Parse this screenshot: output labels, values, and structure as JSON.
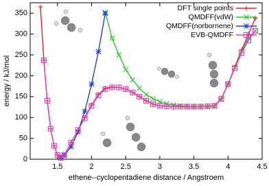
{
  "chart_data": {
    "type": "line",
    "x_label": "ethene--cyclopentadiene distance / Angstroem",
    "y_label": "energy / kJ/mol",
    "xlim": [
      1.1,
      4.5
    ],
    "xticks": [
      1.5,
      2,
      2.5,
      3,
      3.5,
      4,
      4.5
    ],
    "ylim": [
      0,
      375
    ],
    "yticks": [
      0,
      50,
      100,
      150,
      200,
      250,
      300,
      350
    ],
    "legend": "top-right",
    "series": [
      {
        "name": "DFT single points",
        "color": "#e3242b",
        "marker": "plus",
        "x": [
          1.25,
          1.3,
          1.35,
          1.4,
          1.45,
          1.5,
          1.55,
          1.6,
          1.7,
          1.8,
          1.9,
          2.0,
          2.1,
          2.2,
          2.3,
          2.4,
          2.5,
          2.6,
          2.7,
          2.8,
          2.9,
          3.0,
          3.1,
          3.2,
          3.3,
          3.4,
          3.5,
          3.6,
          3.7,
          3.8,
          3.9,
          4.0,
          4.1,
          4.2,
          4.3,
          4.4
        ],
        "values": [
          365,
          237,
          140,
          73,
          32,
          10,
          3,
          10,
          40,
          70,
          100,
          130,
          155,
          170,
          173,
          172,
          168,
          160,
          150,
          140,
          132,
          128,
          127,
          126,
          126,
          126,
          126,
          126,
          127,
          128,
          145,
          180,
          222,
          262,
          300,
          338
        ]
      },
      {
        "name": "QMDFF(vdW)",
        "color": "#2bc72b",
        "marker": "cross",
        "x": [
          2.2,
          2.3,
          2.4,
          2.5,
          2.6,
          2.7,
          2.8,
          2.9,
          3.0,
          3.1,
          3.2,
          3.3,
          3.4,
          3.5,
          3.6,
          3.7,
          3.8,
          3.9,
          4.0,
          4.1,
          4.2,
          4.3,
          4.4
        ],
        "values": [
          352,
          290,
          250,
          215,
          190,
          170,
          155,
          145,
          138,
          133,
          130,
          128,
          127,
          126,
          126,
          126,
          127,
          143,
          180,
          220,
          258,
          290,
          308
        ]
      },
      {
        "name": "QMDFF(norbornene)",
        "color": "#2040d0",
        "marker": "star",
        "x": [
          1.55,
          1.6,
          1.7,
          1.8,
          1.9,
          2.0,
          2.1,
          2.2
        ],
        "values": [
          5,
          10,
          30,
          65,
          115,
          180,
          258,
          350
        ]
      },
      {
        "name": "EVB-QMDFF",
        "color": "#e040c0",
        "marker": "square",
        "x": [
          1.3,
          1.35,
          1.4,
          1.45,
          1.5,
          1.55,
          1.6,
          1.7,
          1.8,
          1.9,
          2.0,
          2.1,
          2.2,
          2.3,
          2.4,
          2.5,
          2.6,
          2.7,
          2.8,
          2.9,
          3.0,
          3.1,
          3.2,
          3.3,
          3.4,
          3.5,
          3.6,
          3.7,
          3.8,
          3.9,
          4.0,
          4.1,
          4.2,
          4.3,
          4.4
        ],
        "values": [
          237,
          140,
          73,
          32,
          10,
          3,
          10,
          40,
          70,
          98,
          128,
          153,
          168,
          172,
          172,
          168,
          160,
          150,
          140,
          132,
          128,
          127,
          126,
          126,
          126,
          126,
          126,
          127,
          128,
          145,
          180,
          218,
          255,
          285,
          308
        ]
      }
    ]
  }
}
